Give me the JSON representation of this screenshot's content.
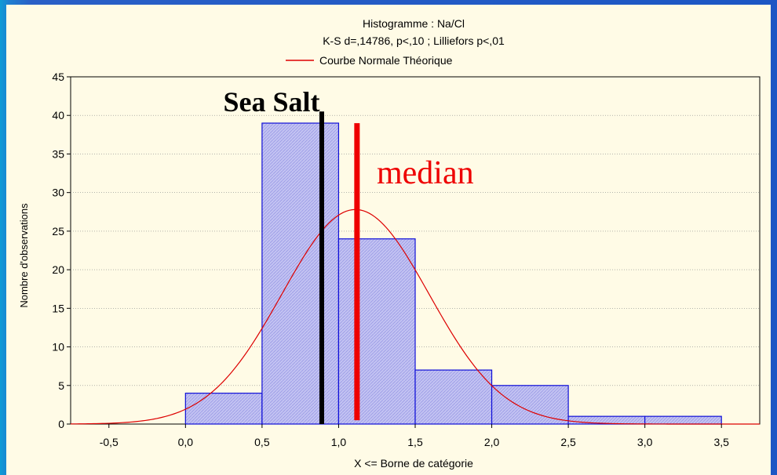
{
  "chart_data": {
    "type": "bar",
    "title": "Histogramme : Na/Cl",
    "subtitle": "K-S d=,14786, p<,10 ; Lilliefors p<,01",
    "legend": {
      "entries": [
        "Courbe Normale Théorique"
      ],
      "placement": "top-center"
    },
    "xlabel": "X <= Borne de catégorie",
    "ylabel": "Nombre d'observations",
    "xlim": [
      -0.75,
      3.75
    ],
    "ylim": [
      0,
      45
    ],
    "grid": true,
    "xticks": [
      "-0,5",
      "0,0",
      "0,5",
      "1,0",
      "1,5",
      "2,0",
      "2,5",
      "3,0",
      "3,5"
    ],
    "yticks": [
      "0",
      "5",
      "10",
      "15",
      "20",
      "25",
      "30",
      "35",
      "40",
      "45"
    ],
    "bins": [
      {
        "from": 0.0,
        "to": 0.5,
        "count": 4
      },
      {
        "from": 0.5,
        "to": 1.0,
        "count": 39
      },
      {
        "from": 1.0,
        "to": 1.5,
        "count": 24
      },
      {
        "from": 1.5,
        "to": 2.0,
        "count": 7
      },
      {
        "from": 2.0,
        "to": 2.5,
        "count": 5
      },
      {
        "from": 2.5,
        "to": 3.0,
        "count": 1
      },
      {
        "from": 3.0,
        "to": 3.5,
        "count": 1
      }
    ],
    "normal_curve": {
      "name": "Courbe Normale Théorique",
      "mean": 1.11,
      "peak": 27.8,
      "sd": 0.48
    },
    "annotations": [
      {
        "label": "Sea Salt",
        "x": 0.89,
        "y_from": 0,
        "y_to": 40.5,
        "color": "#000000"
      },
      {
        "label": "median",
        "x": 1.12,
        "y_from": 0.5,
        "y_to": 39,
        "color": "#ee0000"
      }
    ],
    "colors": {
      "bar_fill": "#c3c3f2",
      "bar_stroke": "#0f0fd8",
      "curve": "#dd0000",
      "grid": "#888888"
    }
  }
}
